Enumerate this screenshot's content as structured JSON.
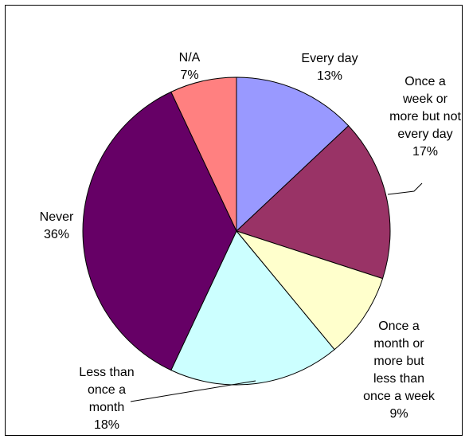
{
  "chart_data": {
    "type": "pie",
    "title": "",
    "slices": [
      {
        "label": [
          "Every day",
          "13%"
        ],
        "value": 13,
        "color": "#9999ff"
      },
      {
        "label": [
          "Once a",
          "week or",
          "more but not",
          "every day",
          "17%"
        ],
        "value": 17,
        "color": "#993366"
      },
      {
        "label": [
          "Once a",
          "month or",
          "more but",
          "less than",
          "once a week",
          "9%"
        ],
        "value": 9,
        "color": "#ffffcc"
      },
      {
        "label": [
          "Less than",
          "once a",
          "month",
          "18%"
        ],
        "value": 18,
        "color": "#ccffff"
      },
      {
        "label": [
          "Never",
          "36%"
        ],
        "value": 36,
        "color": "#660066"
      },
      {
        "label": [
          "N/A",
          "7%"
        ],
        "value": 7,
        "color": "#ff8080"
      }
    ]
  }
}
